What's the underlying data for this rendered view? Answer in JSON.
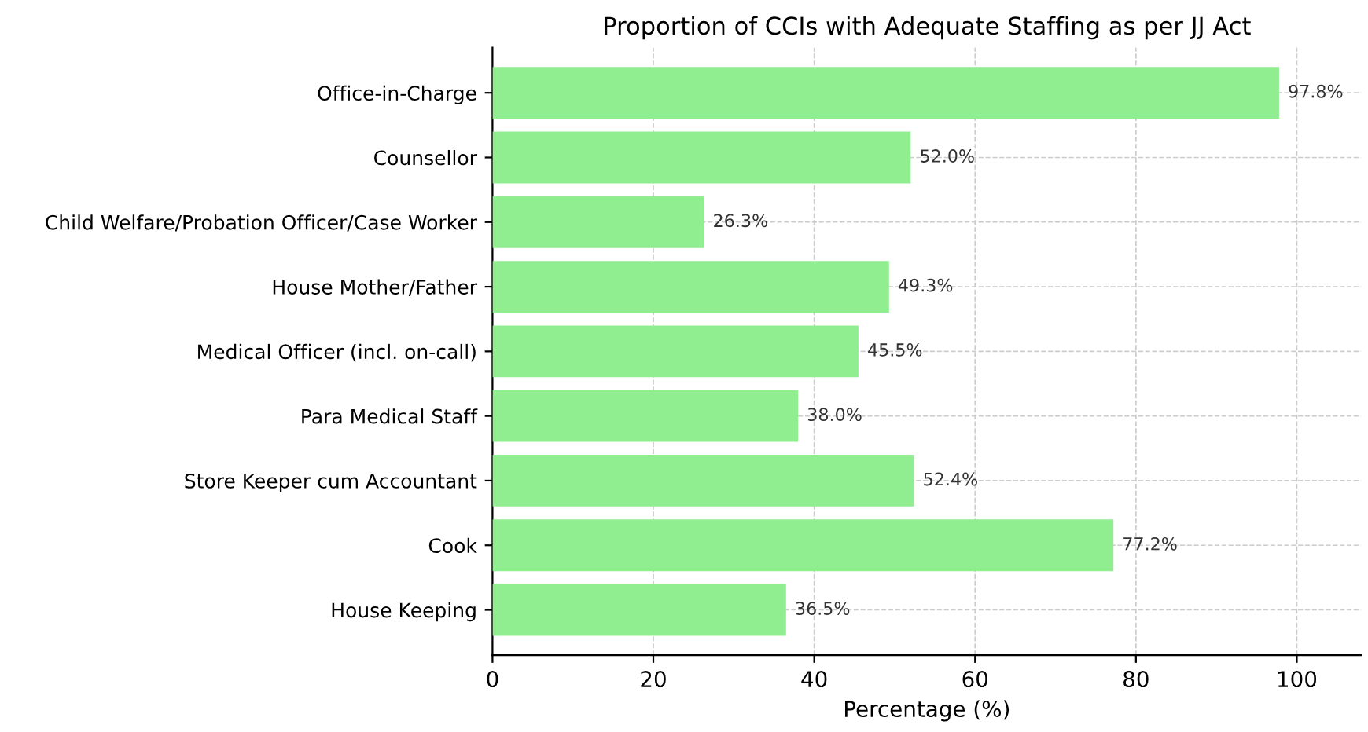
{
  "chart_data": {
    "type": "bar",
    "orientation": "horizontal",
    "title": "Proportion of CCIs with Adequate Staffing as per JJ Act",
    "xlabel": "Percentage (%)",
    "categories": [
      "Office-in-Charge",
      "Counsellor",
      "Child Welfare/Probation Officer/Case Worker",
      "House Mother/Father",
      "Medical Officer (incl. on-call)",
      "Para Medical Staff",
      "Store Keeper cum Accountant",
      "Cook",
      "House Keeping"
    ],
    "values": [
      97.8,
      52.0,
      26.3,
      49.3,
      45.5,
      38.0,
      52.4,
      77.2,
      36.5
    ],
    "value_labels": [
      "97.8%",
      "52.0%",
      "26.3%",
      "49.3%",
      "45.5%",
      "38.0%",
      "52.4%",
      "77.2%",
      "36.5%"
    ],
    "color": "#90ee90",
    "xlim": [
      0,
      108
    ],
    "xticks": [
      0,
      20,
      40,
      60,
      80,
      100
    ],
    "grid": true
  }
}
